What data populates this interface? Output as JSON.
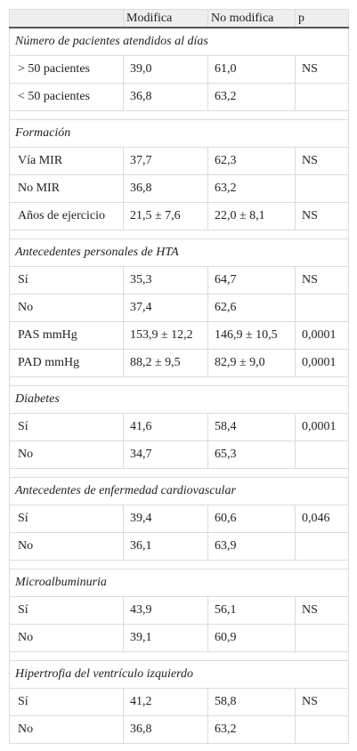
{
  "header": [
    "Modifica",
    "No modifica",
    "p"
  ],
  "sections": [
    {
      "title": "Número de pacientes atendidos al días",
      "rows": [
        [
          "> 50 pacientes",
          "39,0",
          "61,0",
          "NS"
        ],
        [
          "< 50 pacientes",
          "36,8",
          "63,2"
        ]
      ]
    },
    {
      "title": "Formación",
      "rows": [
        [
          "Vía MIR",
          "37,7",
          "62,3",
          "NS"
        ],
        [
          "No MIR",
          "36,8",
          "63,2"
        ],
        [
          "Años de ejercicio",
          "21,5 ± 7,6",
          "22,0 ± 8,1",
          "NS"
        ]
      ]
    },
    {
      "title": "Antecedentes personales de HTA",
      "rows": [
        [
          "Sí",
          "35,3",
          "64,7",
          "NS"
        ],
        [
          "No",
          "37,4",
          "62,6"
        ],
        [
          "PAS mmHg",
          "153,9 ± 12,2",
          "146,9 ± 10,5",
          "0,0001"
        ],
        [
          "PAD mmHg",
          "88,2 ± 9,5",
          "82,9 ± 9,0",
          "0,0001"
        ]
      ]
    },
    {
      "title": "Diabetes",
      "rows": [
        [
          "Sí",
          "41,6",
          "58,4",
          "0,0001"
        ],
        [
          "No",
          "34,7",
          "65,3"
        ]
      ]
    },
    {
      "title": "Antecedentes de enfermedad cardiovascular",
      "rows": [
        [
          "Sí",
          "39,4",
          "60,6",
          "0,046"
        ],
        [
          "No",
          "36,1",
          "63,9"
        ]
      ]
    },
    {
      "title": "Microalbuminuria",
      "rows": [
        [
          "Sí",
          "43,9",
          "56,1",
          "NS"
        ],
        [
          "No",
          "39,1",
          "60,9"
        ]
      ]
    },
    {
      "title": "Hipertrofia del ventrículo izquierdo",
      "rows": [
        [
          "Sí",
          "41,2",
          "58,8",
          "NS"
        ],
        [
          "No",
          "36,8",
          "63,2"
        ]
      ]
    }
  ]
}
